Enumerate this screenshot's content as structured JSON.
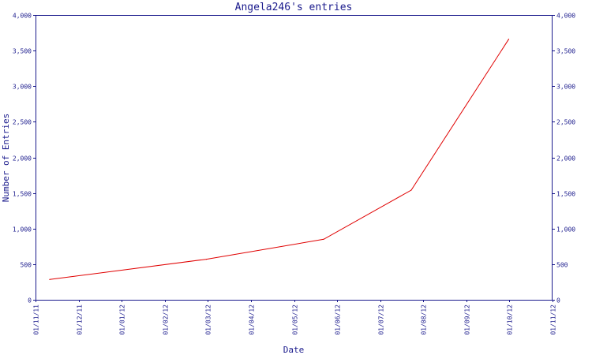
{
  "chart_data": {
    "type": "line",
    "title": "Angela246's entries",
    "xlabel": "Date",
    "ylabel": "Number of Entries",
    "x_tick_labels": [
      "01/11/11",
      "01/12/11",
      "01/01/12",
      "01/02/12",
      "01/03/12",
      "01/04/12",
      "01/05/12",
      "01/06/12",
      "01/07/12",
      "01/08/12",
      "01/09/12",
      "01/10/12",
      "01/11/12"
    ],
    "y_ticks": [
      0,
      500,
      1000,
      1500,
      2000,
      2500,
      3000,
      3500,
      4000
    ],
    "y_tick_labels": [
      "0",
      "500",
      "1,000",
      "1,500",
      "2,000",
      "2,500",
      "3,000",
      "3,500",
      "4,000"
    ],
    "ylim": [
      0,
      4000
    ],
    "xlim": [
      "2011-11-01",
      "2012-11-01"
    ],
    "grid": false,
    "series": [
      {
        "color": "#e00000",
        "points": [
          {
            "x": "2011-11-11",
            "y": 285
          },
          {
            "x": "2012-03-01",
            "y": 570
          },
          {
            "x": "2012-05-23",
            "y": 850
          },
          {
            "x": "2012-07-24",
            "y": 1540
          },
          {
            "x": "2012-10-01",
            "y": 3660
          }
        ]
      }
    ]
  }
}
